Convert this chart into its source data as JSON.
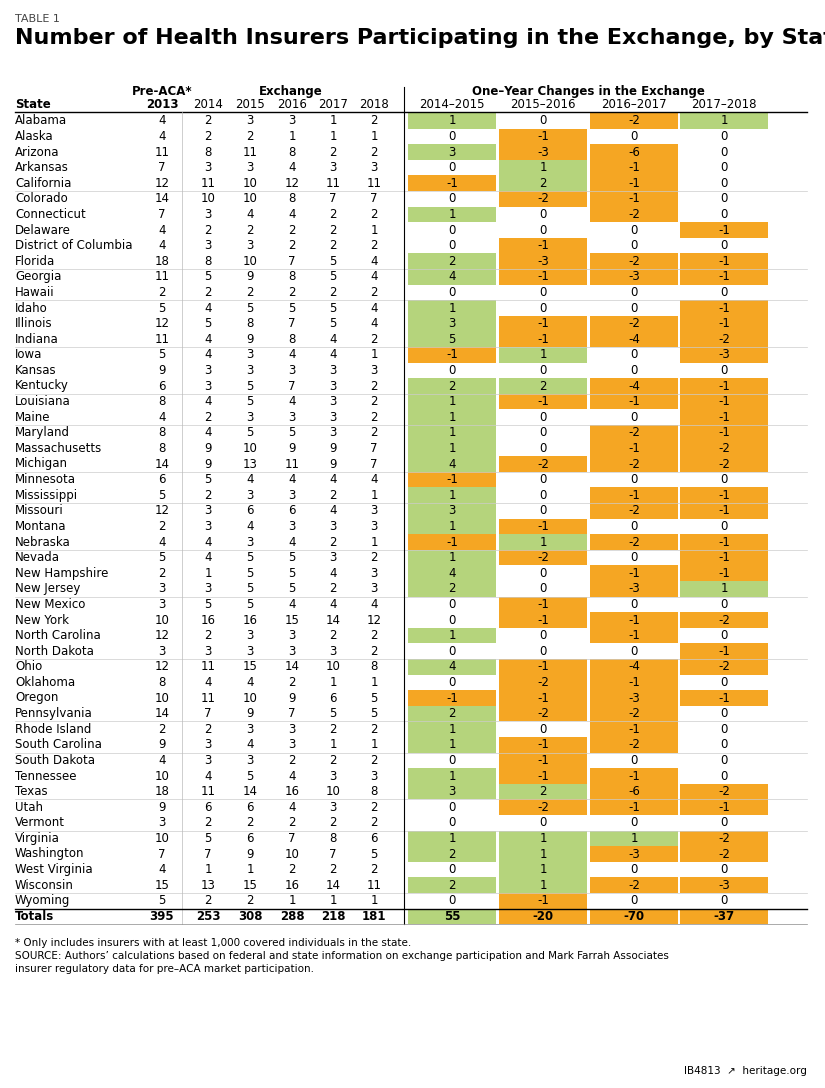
{
  "table1_label": "TABLE 1",
  "title": "Number of Health Insurers Participating in the Exchange, by State",
  "header_group1": "Pre-ACA*",
  "header_group2": "Exchange",
  "header_group3": "One–Year Changes in the Exchange",
  "states": [
    "Alabama",
    "Alaska",
    "Arizona",
    "Arkansas",
    "California",
    "Colorado",
    "Connecticut",
    "Delaware",
    "District of Columbia",
    "Florida",
    "Georgia",
    "Hawaii",
    "Idaho",
    "Illinois",
    "Indiana",
    "Iowa",
    "Kansas",
    "Kentucky",
    "Louisiana",
    "Maine",
    "Maryland",
    "Massachusetts",
    "Michigan",
    "Minnesota",
    "Mississippi",
    "Missouri",
    "Montana",
    "Nebraska",
    "Nevada",
    "New Hampshire",
    "New Jersey",
    "New Mexico",
    "New York",
    "North Carolina",
    "North Dakota",
    "Ohio",
    "Oklahoma",
    "Oregon",
    "Pennsylvania",
    "Rhode Island",
    "South Carolina",
    "South Dakota",
    "Tennessee",
    "Texas",
    "Utah",
    "Vermont",
    "Virginia",
    "Washington",
    "West Virginia",
    "Wisconsin",
    "Wyoming",
    "Totals"
  ],
  "pre_aca_2013": [
    4,
    4,
    11,
    7,
    12,
    14,
    7,
    4,
    4,
    18,
    11,
    2,
    5,
    12,
    11,
    5,
    9,
    6,
    8,
    4,
    8,
    8,
    14,
    6,
    5,
    12,
    2,
    4,
    5,
    2,
    3,
    3,
    10,
    12,
    3,
    12,
    8,
    10,
    14,
    2,
    9,
    4,
    10,
    18,
    9,
    3,
    10,
    7,
    4,
    15,
    5,
    395
  ],
  "exchange_2014": [
    2,
    2,
    8,
    3,
    11,
    10,
    3,
    2,
    3,
    8,
    5,
    2,
    4,
    5,
    4,
    4,
    3,
    3,
    4,
    2,
    4,
    9,
    9,
    5,
    2,
    3,
    3,
    4,
    4,
    1,
    3,
    5,
    16,
    2,
    3,
    11,
    4,
    11,
    7,
    2,
    3,
    3,
    4,
    11,
    6,
    2,
    5,
    7,
    1,
    13,
    2,
    253
  ],
  "exchange_2015": [
    3,
    2,
    11,
    3,
    10,
    10,
    4,
    2,
    3,
    10,
    9,
    2,
    5,
    8,
    9,
    3,
    3,
    5,
    5,
    3,
    5,
    10,
    13,
    4,
    3,
    6,
    4,
    3,
    5,
    5,
    5,
    5,
    16,
    3,
    3,
    15,
    4,
    10,
    9,
    3,
    4,
    3,
    5,
    14,
    6,
    2,
    6,
    9,
    1,
    15,
    2,
    308
  ],
  "exchange_2016": [
    3,
    1,
    8,
    4,
    12,
    8,
    4,
    2,
    2,
    7,
    8,
    2,
    5,
    7,
    8,
    4,
    3,
    7,
    4,
    3,
    5,
    9,
    11,
    4,
    3,
    6,
    3,
    4,
    5,
    5,
    5,
    4,
    15,
    3,
    3,
    14,
    2,
    9,
    7,
    3,
    3,
    2,
    4,
    16,
    4,
    2,
    7,
    10,
    2,
    16,
    1,
    288
  ],
  "exchange_2017": [
    1,
    1,
    2,
    3,
    11,
    7,
    2,
    2,
    2,
    5,
    5,
    2,
    5,
    5,
    4,
    4,
    3,
    3,
    3,
    3,
    3,
    9,
    9,
    4,
    2,
    4,
    3,
    2,
    3,
    4,
    2,
    4,
    14,
    2,
    3,
    10,
    1,
    6,
    5,
    2,
    1,
    2,
    3,
    10,
    3,
    2,
    8,
    7,
    2,
    14,
    1,
    218
  ],
  "exchange_2018": [
    2,
    1,
    2,
    3,
    11,
    7,
    2,
    1,
    2,
    4,
    4,
    2,
    4,
    4,
    2,
    1,
    3,
    2,
    2,
    2,
    2,
    7,
    7,
    4,
    1,
    3,
    3,
    1,
    2,
    3,
    3,
    4,
    12,
    2,
    2,
    8,
    1,
    5,
    5,
    2,
    1,
    2,
    3,
    8,
    2,
    2,
    6,
    5,
    2,
    11,
    1,
    181
  ],
  "change_2014_2015": [
    1,
    0,
    3,
    0,
    -1,
    0,
    1,
    0,
    0,
    2,
    4,
    0,
    1,
    3,
    5,
    -1,
    0,
    2,
    1,
    1,
    1,
    1,
    4,
    -1,
    1,
    3,
    1,
    -1,
    1,
    4,
    2,
    0,
    0,
    1,
    0,
    4,
    0,
    -1,
    2,
    1,
    1,
    0,
    1,
    3,
    0,
    0,
    1,
    2,
    0,
    2,
    0,
    55
  ],
  "change_2015_2016": [
    0,
    -1,
    -3,
    1,
    2,
    -2,
    0,
    0,
    -1,
    -3,
    -1,
    0,
    0,
    -1,
    -1,
    1,
    0,
    2,
    -1,
    0,
    0,
    0,
    -2,
    0,
    0,
    0,
    -1,
    1,
    -2,
    0,
    0,
    -1,
    -1,
    0,
    0,
    -1,
    -2,
    -1,
    -2,
    0,
    -1,
    -1,
    -1,
    2,
    -2,
    0,
    1,
    1,
    1,
    1,
    -1,
    -20
  ],
  "change_2016_2017": [
    -2,
    0,
    -6,
    -1,
    -1,
    -1,
    -2,
    0,
    0,
    -2,
    -3,
    0,
    0,
    -2,
    -4,
    0,
    0,
    -4,
    -1,
    0,
    -2,
    -1,
    -2,
    0,
    -1,
    -2,
    0,
    -2,
    0,
    -1,
    -3,
    0,
    -1,
    -1,
    0,
    -4,
    -1,
    -3,
    -2,
    -1,
    -2,
    0,
    -1,
    -6,
    -1,
    0,
    1,
    -3,
    0,
    -2,
    0,
    -70
  ],
  "change_2017_2018": [
    1,
    0,
    0,
    0,
    0,
    0,
    0,
    -1,
    0,
    -1,
    -1,
    0,
    -1,
    -1,
    -2,
    -3,
    0,
    -1,
    -1,
    -1,
    -1,
    -2,
    -2,
    0,
    -1,
    -1,
    0,
    -1,
    -1,
    -1,
    1,
    0,
    -2,
    0,
    -1,
    -2,
    0,
    -1,
    0,
    0,
    0,
    0,
    0,
    -2,
    -1,
    0,
    -2,
    -2,
    0,
    -3,
    0,
    -37
  ],
  "green_color": "#b5d47c",
  "orange_color": "#f5a623",
  "white_color": "#ffffff",
  "footnote1": "* Only includes insurers with at least 1,000 covered individuals in the state.",
  "footnote2": "SOURCE: Authors’ calculations based on federal and state information on exchange participation and Mark Farrah Associates",
  "footnote3": "insurer regulatory data for pre–ACA market participation.",
  "footer_right": "IB4813  ↗  heritage.org",
  "separator_after_rows": [
    4,
    9,
    11,
    14,
    17,
    19,
    22,
    24,
    27,
    30,
    34,
    38,
    40,
    43,
    45,
    49
  ]
}
